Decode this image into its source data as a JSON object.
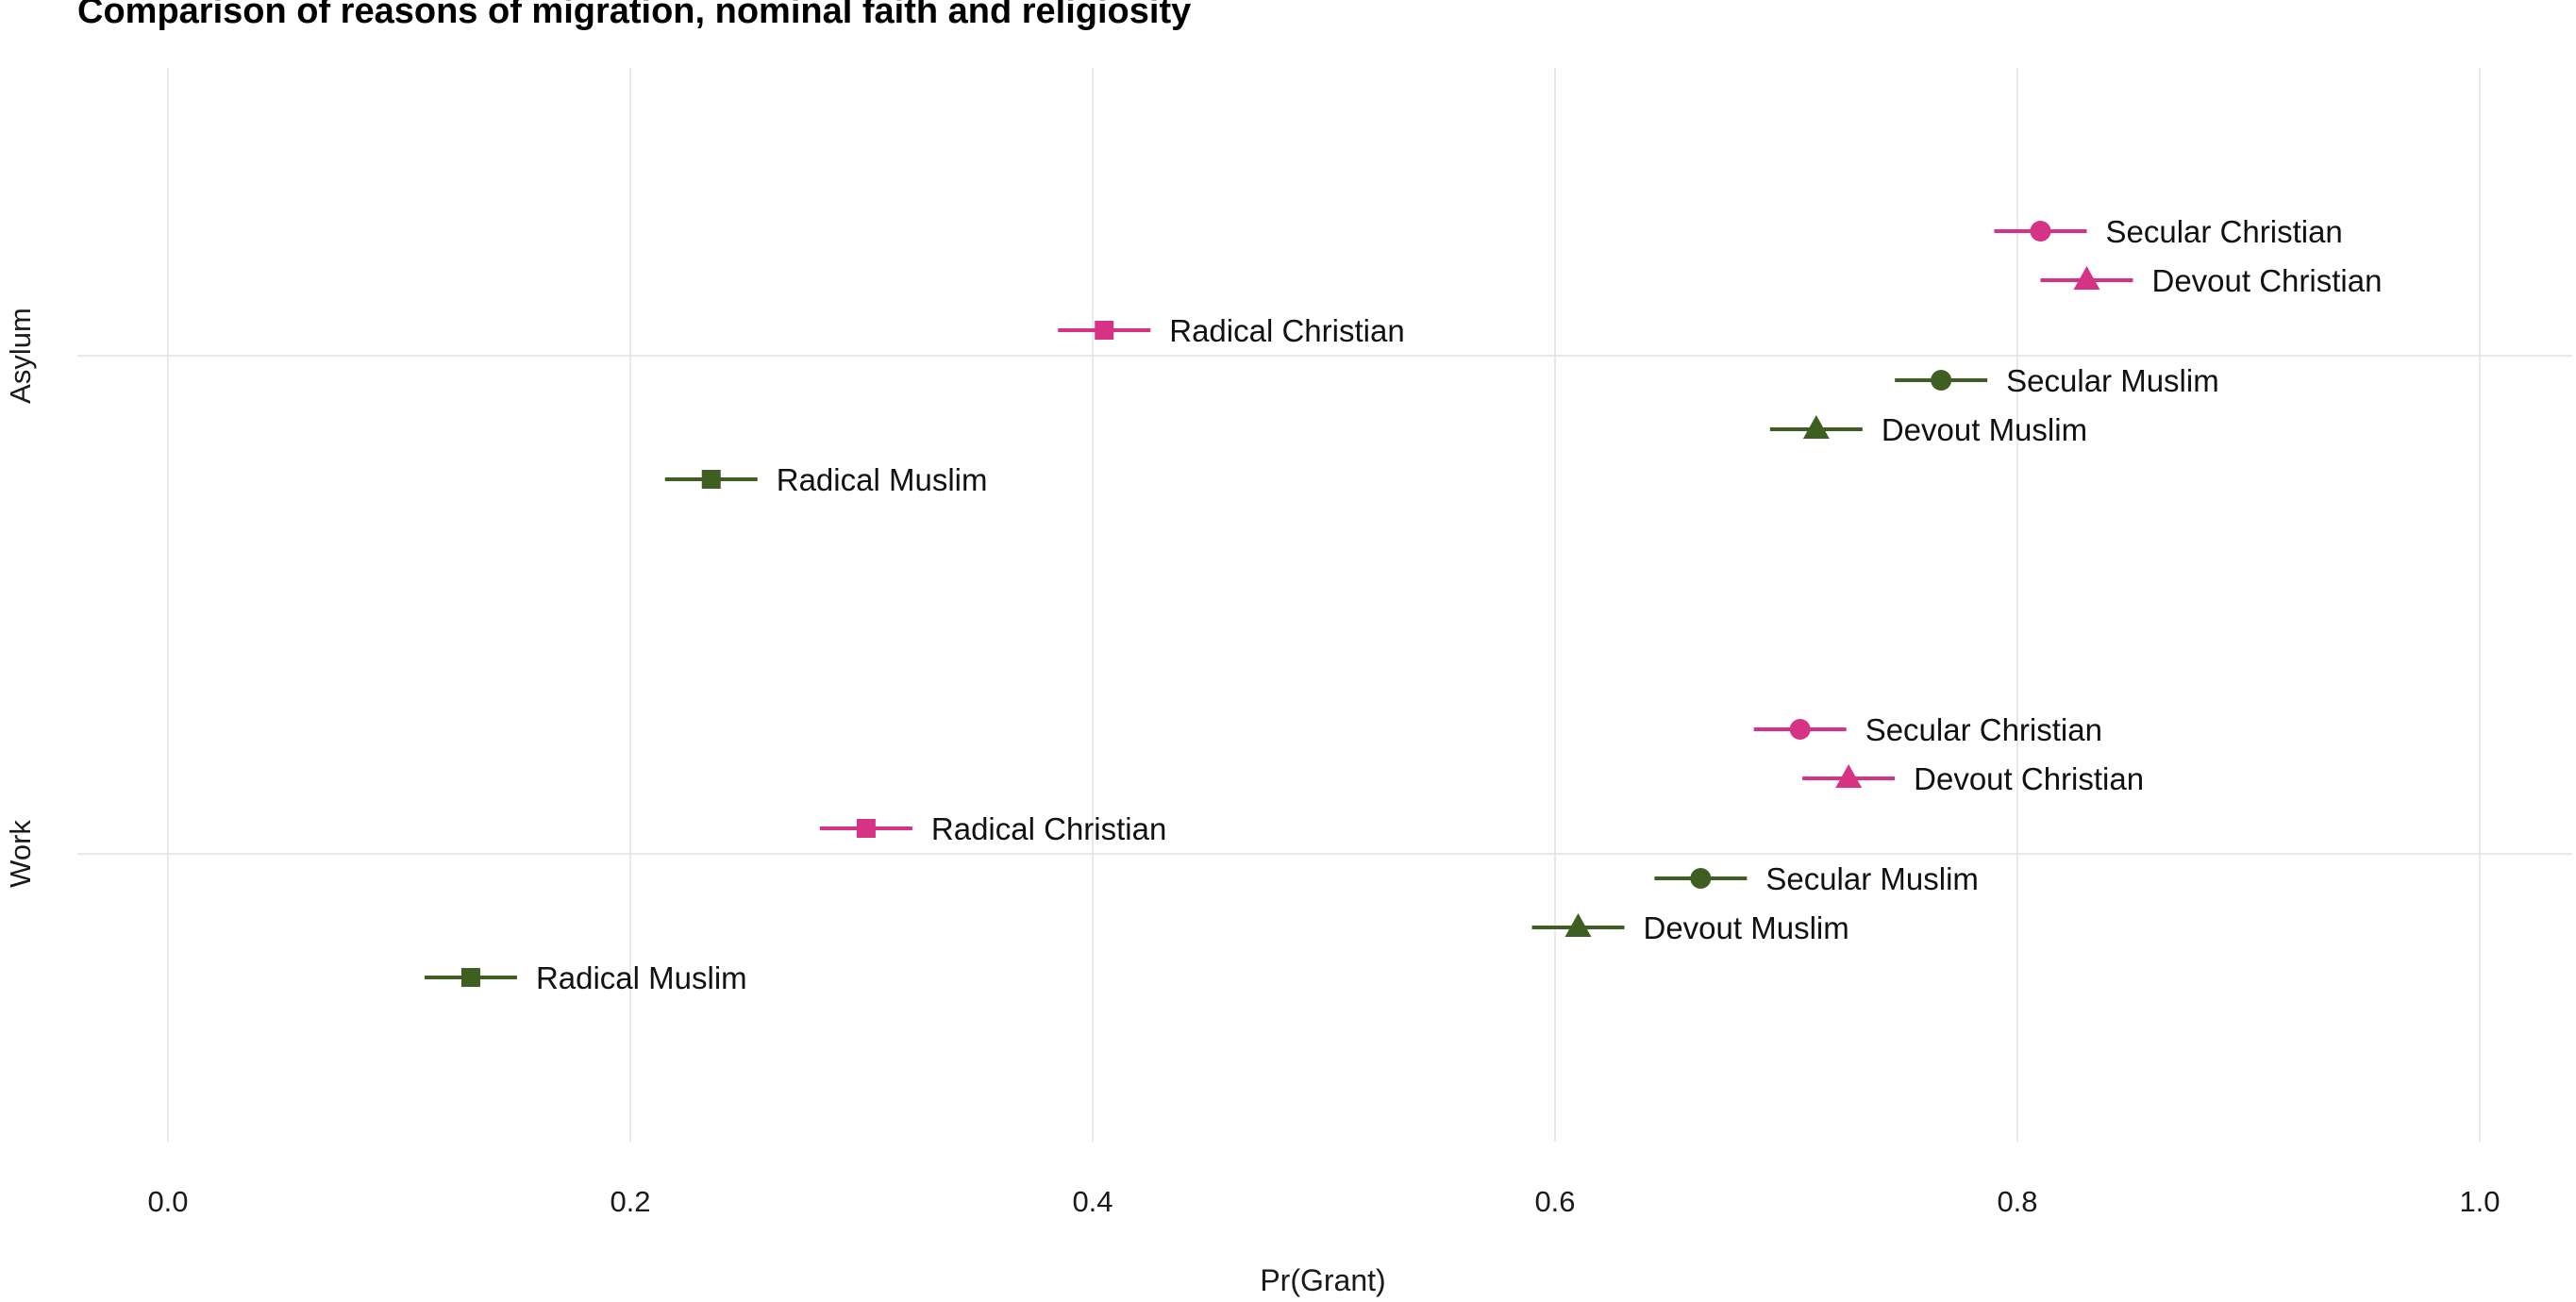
{
  "chart_data": {
    "type": "scatter",
    "title": "Comparison of reasons of migration, nominal faith and religiosity",
    "xlabel": "Pr(Grant)",
    "ylabel": "",
    "xlim": [
      -0.1,
      1.04
    ],
    "x_ticks": [
      "0.0",
      "0.2",
      "0.4",
      "0.6",
      "0.8",
      "1.0"
    ],
    "x_tick_values": [
      0.0,
      0.2,
      0.4,
      0.6,
      0.8,
      1.0
    ],
    "categories": [
      "Asylum",
      "Work"
    ],
    "grid": true,
    "legend": "none",
    "colors": {
      "christian": "#d63384",
      "muslim": "#3f5f22",
      "grid": "#e0e0e0"
    },
    "series": [
      {
        "category": "Asylum",
        "points": [
          {
            "label": "Secular Christian",
            "faith": "christian",
            "marker": "circle",
            "x": 0.81,
            "lo": 0.79,
            "hi": 0.83
          },
          {
            "label": "Devout Christian",
            "faith": "christian",
            "marker": "triangle",
            "x": 0.83,
            "lo": 0.81,
            "hi": 0.85
          },
          {
            "label": "Radical Christian",
            "faith": "christian",
            "marker": "square",
            "x": 0.405,
            "lo": 0.385,
            "hi": 0.425
          },
          {
            "label": "Secular Muslim",
            "faith": "muslim",
            "marker": "circle",
            "x": 0.767,
            "lo": 0.747,
            "hi": 0.787
          },
          {
            "label": "Devout Muslim",
            "faith": "muslim",
            "marker": "triangle",
            "x": 0.713,
            "lo": 0.693,
            "hi": 0.733
          },
          {
            "label": "Radical Muslim",
            "faith": "muslim",
            "marker": "square",
            "x": 0.235,
            "lo": 0.215,
            "hi": 0.255
          }
        ]
      },
      {
        "category": "Work",
        "points": [
          {
            "label": "Secular Christian",
            "faith": "christian",
            "marker": "circle",
            "x": 0.706,
            "lo": 0.686,
            "hi": 0.726
          },
          {
            "label": "Devout Christian",
            "faith": "christian",
            "marker": "triangle",
            "x": 0.727,
            "lo": 0.707,
            "hi": 0.747
          },
          {
            "label": "Radical Christian",
            "faith": "christian",
            "marker": "square",
            "x": 0.302,
            "lo": 0.282,
            "hi": 0.322
          },
          {
            "label": "Secular Muslim",
            "faith": "muslim",
            "marker": "circle",
            "x": 0.663,
            "lo": 0.643,
            "hi": 0.683
          },
          {
            "label": "Devout Muslim",
            "faith": "muslim",
            "marker": "triangle",
            "x": 0.61,
            "lo": 0.59,
            "hi": 0.63
          },
          {
            "label": "Radical Muslim",
            "faith": "muslim",
            "marker": "square",
            "x": 0.131,
            "lo": 0.111,
            "hi": 0.151
          }
        ]
      }
    ]
  }
}
